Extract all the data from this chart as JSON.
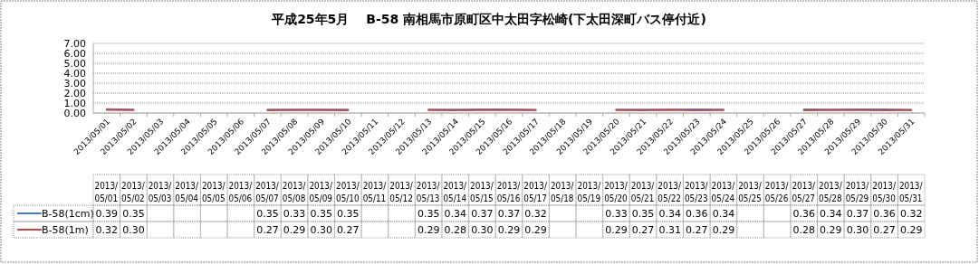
{
  "chart_data": {
    "type": "line",
    "title": "平成25年5月　 B-58 南相馬市原町区中太田字松崎(下太田深町バス停付近)",
    "categories": [
      "2013/05/01",
      "2013/05/02",
      "2013/05/03",
      "2013/05/04",
      "2013/05/05",
      "2013/05/06",
      "2013/05/07",
      "2013/05/08",
      "2013/05/09",
      "2013/05/10",
      "2013/05/11",
      "2013/05/12",
      "2013/05/13",
      "2013/05/14",
      "2013/05/15",
      "2013/05/16",
      "2013/05/17",
      "2013/05/18",
      "2013/05/19",
      "2013/05/20",
      "2013/05/21",
      "2013/05/22",
      "2013/05/23",
      "2013/05/24",
      "2013/05/25",
      "2013/05/26",
      "2013/05/27",
      "2013/05/28",
      "2013/05/29",
      "2013/05/30",
      "2013/05/31"
    ],
    "series": [
      {
        "name": "B-58(1cm)",
        "color": "#4a7ebb",
        "values": [
          0.39,
          0.35,
          null,
          null,
          null,
          null,
          0.35,
          0.33,
          0.35,
          0.35,
          null,
          null,
          0.35,
          0.34,
          0.37,
          0.37,
          0.32,
          null,
          null,
          0.33,
          0.35,
          0.34,
          0.36,
          0.34,
          null,
          null,
          0.36,
          0.34,
          0.37,
          0.36,
          0.32
        ],
        "value_labels": [
          "0.39",
          "0.35",
          null,
          null,
          null,
          null,
          "0.35",
          "0.33",
          "0.35",
          "0.35",
          null,
          null,
          "0.35",
          "0.34",
          "0.37",
          "0.37",
          "0.32",
          null,
          null,
          "0.33",
          "0.35",
          "0.34",
          "0.36",
          "0.34",
          null,
          null,
          "0.36",
          "0.34",
          "0.37",
          "0.36",
          "0.32"
        ]
      },
      {
        "name": "B-58(1m)",
        "color": "#be4b48",
        "values": [
          0.32,
          0.3,
          null,
          null,
          null,
          null,
          0.27,
          0.29,
          0.3,
          0.27,
          null,
          null,
          0.29,
          0.28,
          0.3,
          0.29,
          0.29,
          null,
          null,
          0.29,
          0.27,
          0.31,
          0.27,
          0.29,
          null,
          null,
          0.28,
          0.29,
          0.3,
          0.27,
          0.29
        ],
        "value_labels": [
          "0.32",
          "0.30",
          null,
          null,
          null,
          null,
          "0.27",
          "0.29",
          "0.30",
          "0.27",
          null,
          null,
          "0.29",
          "0.28",
          "0.30",
          "0.29",
          "0.29",
          null,
          null,
          "0.29",
          "0.27",
          "0.31",
          "0.27",
          "0.29",
          null,
          null,
          "0.28",
          "0.29",
          "0.30",
          "0.27",
          "0.29"
        ]
      }
    ],
    "ylim": [
      0,
      7
    ],
    "yticks": [
      {
        "value": 0,
        "label": "0.00"
      },
      {
        "value": 1,
        "label": "1.00"
      },
      {
        "value": 2,
        "label": "2.00"
      },
      {
        "value": 3,
        "label": "3.00"
      },
      {
        "value": 4,
        "label": "4.00"
      },
      {
        "value": 5,
        "label": "5.00"
      },
      {
        "value": 6,
        "label": "6.00"
      },
      {
        "value": 7,
        "label": "7.00"
      }
    ],
    "grid": "y",
    "legend": "bottom",
    "marker": "none",
    "line_style": "solid"
  }
}
